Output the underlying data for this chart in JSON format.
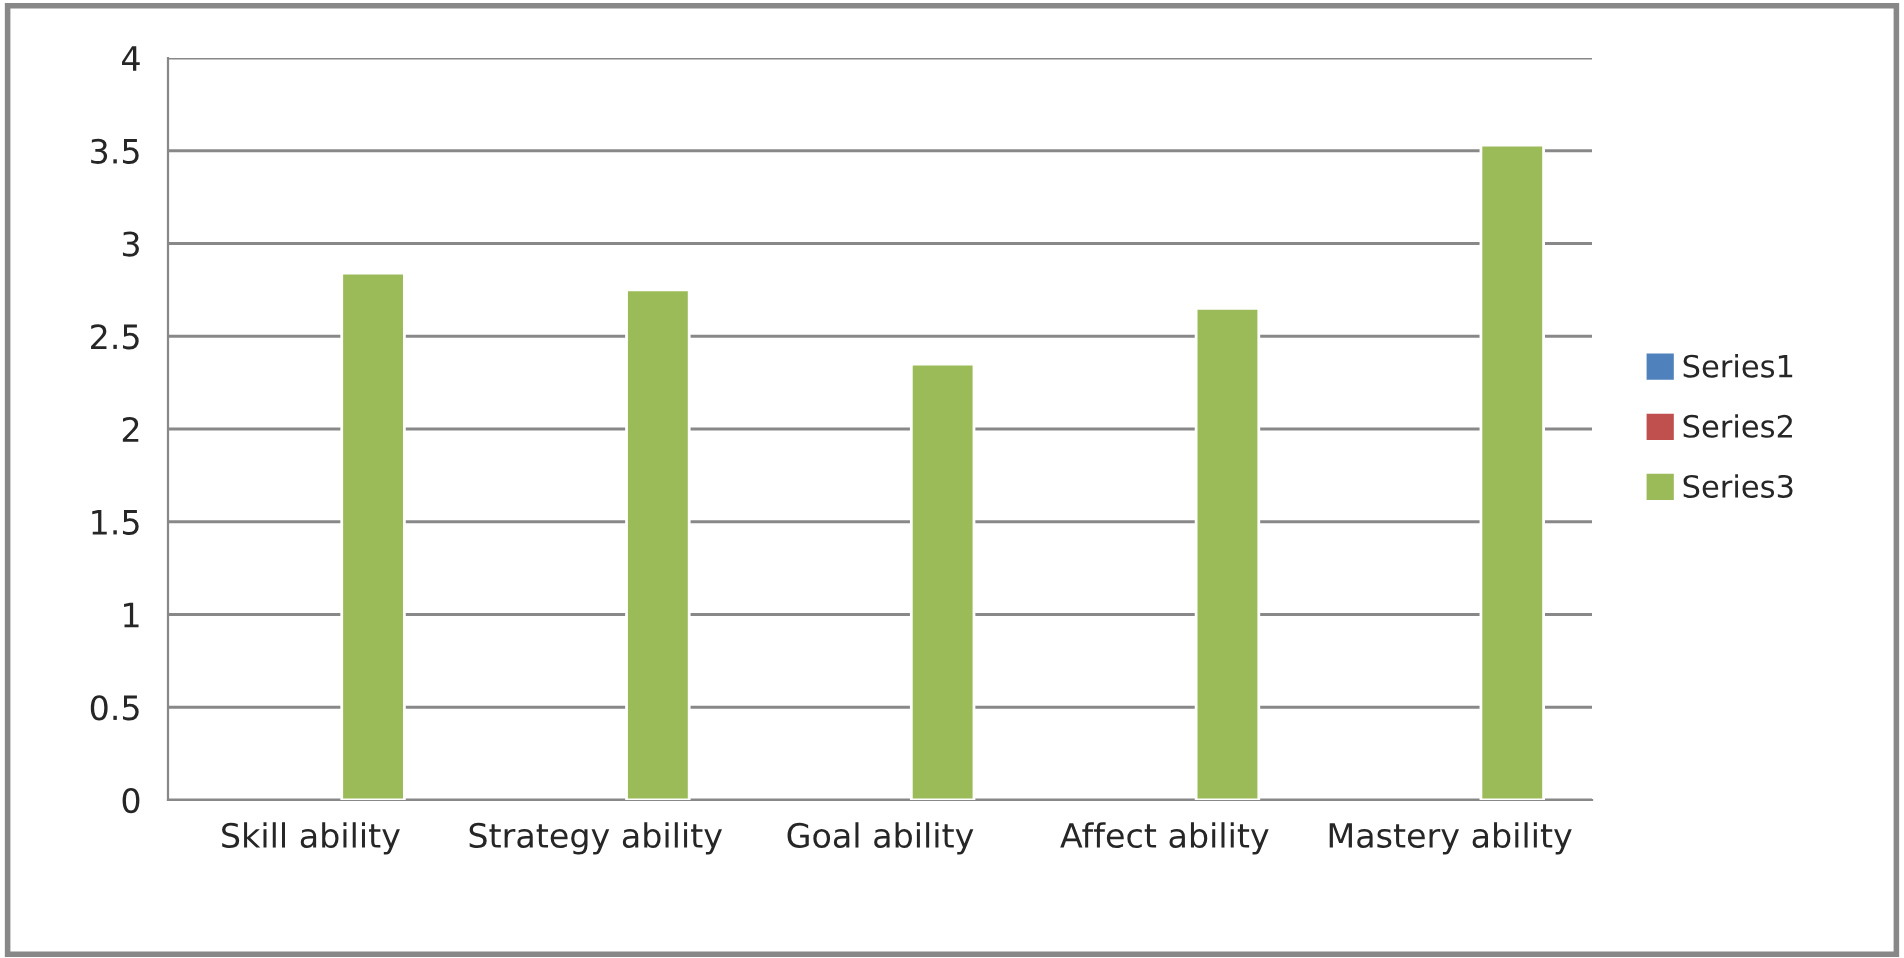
{
  "chart_data": {
    "type": "bar",
    "categories": [
      "Skill ability",
      "Strategy ability",
      "Goal ability",
      "Affect ability",
      "Mastery ability"
    ],
    "series": [
      {
        "name": "Series1",
        "color": "#4f81bd",
        "values": [
          null,
          null,
          null,
          null,
          null
        ]
      },
      {
        "name": "Series2",
        "color": "#c0504d",
        "values": [
          null,
          null,
          null,
          null,
          null
        ]
      },
      {
        "name": "Series3",
        "color": "#9bbb59",
        "values": [
          2.84,
          2.75,
          2.35,
          2.65,
          3.53
        ]
      }
    ],
    "ylim": [
      0,
      4
    ],
    "yticks": [
      0,
      0.5,
      1,
      1.5,
      2,
      2.5,
      3,
      3.5,
      4
    ],
    "grid": "y",
    "legend": "right"
  }
}
